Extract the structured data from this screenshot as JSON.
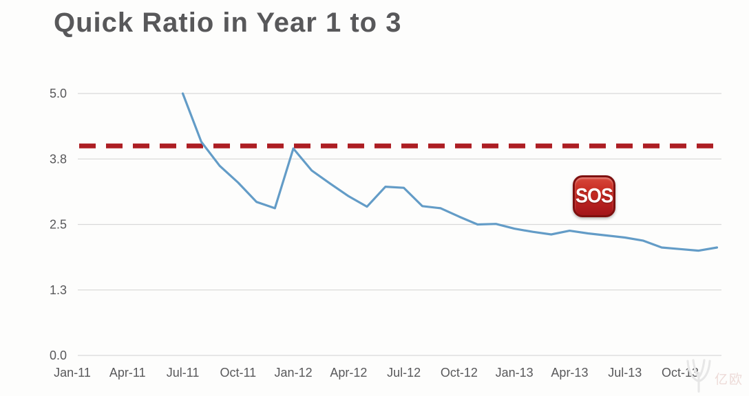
{
  "chart_data": {
    "type": "line",
    "title": "Quick Ratio in Year 1 to 3",
    "xlabel": "",
    "ylabel": "",
    "ylim": [
      0,
      5
    ],
    "grid": true,
    "categories": [
      "Jan-11",
      "Feb-11",
      "Mar-11",
      "Apr-11",
      "May-11",
      "Jun-11",
      "Jul-11",
      "Aug-11",
      "Sep-11",
      "Oct-11",
      "Nov-11",
      "Dec-11",
      "Jan-12",
      "Feb-12",
      "Mar-12",
      "Apr-12",
      "May-12",
      "Jun-12",
      "Jul-12",
      "Aug-12",
      "Sep-12",
      "Oct-12",
      "Nov-12",
      "Dec-12",
      "Jan-13",
      "Feb-13",
      "Mar-13",
      "Apr-13",
      "May-13",
      "Jun-13",
      "Jul-13",
      "Aug-13",
      "Sep-13",
      "Oct-13",
      "Nov-13",
      "Dec-13"
    ],
    "x_tick_labels": [
      "Jan-11",
      "Apr-11",
      "Jul-11",
      "Oct-11",
      "Jan-12",
      "Apr-12",
      "Jul-12",
      "Oct-12",
      "Jan-13",
      "Apr-13",
      "Jul-13",
      "Oct-13"
    ],
    "y_ticks": [
      {
        "value": 5,
        "label": "5.0"
      },
      {
        "value": 3.75,
        "label": "3.8"
      },
      {
        "value": 2.5,
        "label": "2.5"
      },
      {
        "value": 1.25,
        "label": "1.3"
      },
      {
        "value": 0,
        "label": "0.0"
      }
    ],
    "series": [
      {
        "name": "Quick Ratio",
        "color": "#639cc7",
        "points": [
          {
            "month": "Jul-11",
            "value": 5.0
          },
          {
            "month": "Aug-11",
            "value": 4.08
          },
          {
            "month": "Sep-11",
            "value": 3.62
          },
          {
            "month": "Oct-11",
            "value": 3.3
          },
          {
            "month": "Nov-11",
            "value": 2.93
          },
          {
            "month": "Dec-11",
            "value": 2.81
          },
          {
            "month": "Jan-12",
            "value": 3.95
          },
          {
            "month": "Feb-12",
            "value": 3.53
          },
          {
            "month": "Mar-12",
            "value": 3.28
          },
          {
            "month": "Apr-12",
            "value": 3.04
          },
          {
            "month": "May-12",
            "value": 2.84
          },
          {
            "month": "Jun-12",
            "value": 3.22
          },
          {
            "month": "Jul-12",
            "value": 3.2
          },
          {
            "month": "Aug-12",
            "value": 2.85
          },
          {
            "month": "Sep-12",
            "value": 2.81
          },
          {
            "month": "Oct-12",
            "value": 2.65
          },
          {
            "month": "Nov-12",
            "value": 2.5
          },
          {
            "month": "Dec-12",
            "value": 2.51
          },
          {
            "month": "Jan-13",
            "value": 2.42
          },
          {
            "month": "Feb-13",
            "value": 2.36
          },
          {
            "month": "Mar-13",
            "value": 2.31
          },
          {
            "month": "Apr-13",
            "value": 2.38
          },
          {
            "month": "May-13",
            "value": 2.33
          },
          {
            "month": "Jun-13",
            "value": 2.29
          },
          {
            "month": "Jul-13",
            "value": 2.25
          },
          {
            "month": "Aug-13",
            "value": 2.19
          },
          {
            "month": "Sep-13",
            "value": 2.06
          },
          {
            "month": "Oct-13",
            "value": 2.03
          },
          {
            "month": "Nov-13",
            "value": 2.0
          },
          {
            "month": "Dec-13",
            "value": 2.06
          }
        ]
      }
    ],
    "threshold_line": {
      "value": 4.0,
      "color": "#ad1e23",
      "style": "dashed"
    },
    "annotation": {
      "label": "SOS"
    },
    "colors": {
      "grid": "#d9d9d9",
      "axis_text": "#58585a",
      "title_text": "#58585a"
    }
  },
  "watermark": {
    "text": "亿欧",
    "logo": "yiou-leaf-logo"
  }
}
